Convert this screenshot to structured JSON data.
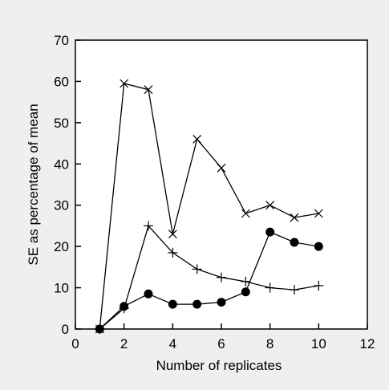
{
  "chart_data": {
    "type": "line",
    "title": "",
    "xlabel": "Number of replicates",
    "ylabel": "SE as percentage of mean",
    "xlim": [
      0,
      12
    ],
    "ylim": [
      0,
      70
    ],
    "x_ticks": [
      "0",
      "2",
      "4",
      "6",
      "8",
      "10",
      "12"
    ],
    "y_ticks": [
      "0",
      "10",
      "20",
      "30",
      "40",
      "50",
      "60",
      "70"
    ],
    "grid": false,
    "legend": "none",
    "series": [
      {
        "marker": "x",
        "x": [
          1,
          2,
          3,
          4,
          5,
          6,
          7,
          8,
          9,
          10
        ],
        "y": [
          0,
          59.5,
          58,
          23,
          46,
          39,
          28,
          30,
          27,
          28
        ]
      },
      {
        "marker": "+",
        "x": [
          1,
          2,
          3,
          4,
          5,
          6,
          7,
          8,
          9,
          10
        ],
        "y": [
          0,
          5,
          25,
          18.5,
          14.5,
          12.5,
          11.5,
          10,
          9.5,
          10.5
        ]
      },
      {
        "marker": "filled-circle",
        "x": [
          1,
          2,
          3,
          4,
          5,
          6,
          7,
          8,
          9,
          10
        ],
        "y": [
          0,
          5.5,
          8.5,
          6,
          6,
          6.5,
          9,
          23.5,
          21,
          20
        ]
      }
    ],
    "colors": {
      "line": "#000000",
      "background": "#efefef",
      "plot_area": "#ffffff"
    }
  }
}
